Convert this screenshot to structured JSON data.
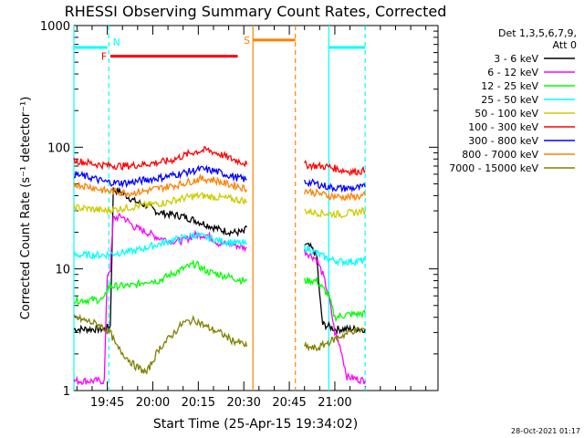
{
  "chart_data": {
    "type": "line",
    "title": "RHESSI Observing Summary Count Rates, Corrected",
    "xlabel": "Start Time (25-Apr-15 19:34:02)",
    "ylabel": "Corrected Count Rate (s⁻¹ detector⁻¹)",
    "yscale": "log",
    "ylim": [
      1,
      1000
    ],
    "xlim_min": [
      0,
      120
    ],
    "xticks": [
      {
        "t": 11,
        "label": "19:45"
      },
      {
        "t": 26,
        "label": "20:00"
      },
      {
        "t": 41,
        "label": "20:15"
      },
      {
        "t": 56,
        "label": "20:30"
      },
      {
        "t": 71,
        "label": "20:45"
      },
      {
        "t": 86,
        "label": "21:00"
      }
    ],
    "yticks": [
      {
        "v": 1,
        "label": "1"
      },
      {
        "v": 10,
        "label": "10"
      },
      {
        "v": 100,
        "label": "100"
      },
      {
        "v": 1000,
        "label": "1000"
      }
    ],
    "legend_header": [
      "Det 1,3,5,6,7,9,",
      "Att 0"
    ],
    "legend": [
      {
        "name": "3 - 6 keV",
        "color": "#000000"
      },
      {
        "name": "6 - 12 keV",
        "color": "#ff00ff"
      },
      {
        "name": "12 - 25 keV",
        "color": "#00ff00"
      },
      {
        "name": "25 - 50 keV",
        "color": "#00ffff"
      },
      {
        "name": "50 - 100 keV",
        "color": "#cccc00"
      },
      {
        "name": "100 - 300 keV",
        "color": "#ff0000"
      },
      {
        "name": "300 - 800 keV",
        "color": "#0000ff"
      },
      {
        "name": "800 - 7000 keV",
        "color": "#ff8000"
      },
      {
        "name": "7000 - 15000 keV",
        "color": "#808000"
      }
    ],
    "series": [
      {
        "name": "3 - 6 keV",
        "color": "#000000",
        "segments": [
          [
            [
              0,
              3.2
            ],
            [
              10,
              3.2
            ],
            [
              11,
              3.3
            ],
            [
              12,
              3.4
            ],
            [
              13,
              45
            ],
            [
              16,
              42
            ],
            [
              20,
              36
            ],
            [
              24,
              33
            ],
            [
              28,
              29
            ],
            [
              32,
              28
            ],
            [
              36,
              27
            ],
            [
              40,
              25
            ],
            [
              44,
              23
            ],
            [
              48,
              21
            ],
            [
              52,
              20
            ],
            [
              56,
              20
            ],
            [
              57,
              22
            ]
          ],
          [
            [
              76,
              16
            ],
            [
              78,
              15
            ],
            [
              80,
              13
            ],
            [
              81,
              6
            ],
            [
              82,
              3.5
            ],
            [
              85,
              3.3
            ],
            [
              86,
              3.2
            ],
            [
              96,
              3.2
            ]
          ]
        ]
      },
      {
        "name": "6 - 12 keV",
        "color": "#ff00ff",
        "segments": [
          [
            [
              0,
              1.2
            ],
            [
              10,
              1.2
            ],
            [
              11,
              9
            ],
            [
              12,
              10
            ],
            [
              13,
              26
            ],
            [
              16,
              27
            ],
            [
              20,
              22
            ],
            [
              24,
              20
            ],
            [
              28,
              18
            ],
            [
              32,
              17
            ],
            [
              36,
              17
            ],
            [
              40,
              19
            ],
            [
              44,
              19
            ],
            [
              48,
              16
            ],
            [
              52,
              16
            ],
            [
              56,
              15
            ],
            [
              57,
              15
            ]
          ],
          [
            [
              76,
              14
            ],
            [
              80,
              12
            ],
            [
              82,
              9
            ],
            [
              84,
              6
            ],
            [
              86,
              3
            ],
            [
              88,
              2.2
            ],
            [
              90,
              1.3
            ],
            [
              96,
              1.2
            ]
          ]
        ]
      },
      {
        "name": "12 - 25 keV",
        "color": "#00ff00",
        "segments": [
          [
            [
              0,
              5.5
            ],
            [
              10,
              5.6
            ],
            [
              11,
              7
            ],
            [
              12,
              7.2
            ],
            [
              14,
              7.2
            ],
            [
              20,
              7.3
            ],
            [
              24,
              8
            ],
            [
              28,
              8
            ],
            [
              32,
              9
            ],
            [
              36,
              10
            ],
            [
              40,
              11
            ],
            [
              44,
              9.5
            ],
            [
              48,
              9
            ],
            [
              52,
              8.5
            ],
            [
              56,
              8
            ],
            [
              57,
              8
            ]
          ],
          [
            [
              76,
              8
            ],
            [
              80,
              8
            ],
            [
              84,
              6
            ],
            [
              86,
              4
            ],
            [
              90,
              4.2
            ],
            [
              96,
              4.3
            ]
          ]
        ]
      },
      {
        "name": "25 - 50 keV",
        "color": "#00ffff",
        "segments": [
          [
            [
              0,
              13
            ],
            [
              6,
              13
            ],
            [
              10,
              13
            ],
            [
              14,
              13.5
            ],
            [
              20,
              14
            ],
            [
              24,
              15
            ],
            [
              28,
              16
            ],
            [
              32,
              17
            ],
            [
              36,
              18
            ],
            [
              40,
              19
            ],
            [
              44,
              18
            ],
            [
              48,
              17
            ],
            [
              52,
              16.5
            ],
            [
              56,
              16
            ],
            [
              57,
              16
            ]
          ],
          [
            [
              76,
              15
            ],
            [
              80,
              13.5
            ],
            [
              84,
              12
            ],
            [
              88,
              11.5
            ],
            [
              92,
              11.5
            ],
            [
              96,
              11.7
            ]
          ]
        ]
      },
      {
        "name": "50 - 100 keV",
        "color": "#cccc00",
        "segments": [
          [
            [
              0,
              32
            ],
            [
              6,
              31
            ],
            [
              10,
              30
            ],
            [
              14,
              31
            ],
            [
              18,
              32
            ],
            [
              22,
              33
            ],
            [
              26,
              34
            ],
            [
              30,
              35
            ],
            [
              34,
              37
            ],
            [
              38,
              39
            ],
            [
              42,
              40
            ],
            [
              46,
              39
            ],
            [
              50,
              38
            ],
            [
              54,
              37
            ],
            [
              57,
              36
            ]
          ],
          [
            [
              76,
              30
            ],
            [
              80,
              29
            ],
            [
              84,
              28.5
            ],
            [
              88,
              28
            ],
            [
              92,
              29
            ],
            [
              96,
              30
            ]
          ]
        ]
      },
      {
        "name": "100 - 300 keV",
        "color": "#ff0000",
        "segments": [
          [
            [
              0,
              78
            ],
            [
              4,
              75
            ],
            [
              8,
              72
            ],
            [
              12,
              71
            ],
            [
              16,
              70
            ],
            [
              20,
              71
            ],
            [
              24,
              73
            ],
            [
              28,
              75
            ],
            [
              32,
              78
            ],
            [
              36,
              85
            ],
            [
              40,
              92
            ],
            [
              44,
              95
            ],
            [
              48,
              88
            ],
            [
              52,
              80
            ],
            [
              56,
              75
            ],
            [
              57,
              72
            ]
          ],
          [
            [
              76,
              72
            ],
            [
              80,
              70
            ],
            [
              84,
              69
            ],
            [
              88,
              65
            ],
            [
              92,
              63
            ],
            [
              96,
              64
            ]
          ]
        ]
      },
      {
        "name": "300 - 800 keV",
        "color": "#0000ff",
        "segments": [
          [
            [
              0,
              60
            ],
            [
              6,
              56
            ],
            [
              10,
              52
            ],
            [
              14,
              51
            ],
            [
              18,
              51
            ],
            [
              22,
              53
            ],
            [
              26,
              55
            ],
            [
              30,
              57
            ],
            [
              34,
              60
            ],
            [
              38,
              63
            ],
            [
              42,
              66
            ],
            [
              46,
              64
            ],
            [
              50,
              60
            ],
            [
              54,
              56
            ],
            [
              57,
              54
            ]
          ],
          [
            [
              76,
              52
            ],
            [
              80,
              50
            ],
            [
              84,
              47
            ],
            [
              88,
              46
            ],
            [
              92,
              46
            ],
            [
              96,
              47
            ]
          ]
        ]
      },
      {
        "name": "800 - 7000 keV",
        "color": "#ff8000",
        "segments": [
          [
            [
              0,
              50
            ],
            [
              6,
              47
            ],
            [
              10,
              44
            ],
            [
              14,
              43
            ],
            [
              18,
              42
            ],
            [
              22,
              43
            ],
            [
              26,
              45
            ],
            [
              30,
              47
            ],
            [
              34,
              49
            ],
            [
              38,
              52
            ],
            [
              42,
              55
            ],
            [
              46,
              54
            ],
            [
              50,
              50
            ],
            [
              54,
              48
            ],
            [
              57,
              45
            ]
          ],
          [
            [
              76,
              44
            ],
            [
              80,
              42
            ],
            [
              84,
              40
            ],
            [
              88,
              39
            ],
            [
              92,
              39
            ],
            [
              96,
              40
            ]
          ]
        ]
      },
      {
        "name": "7000 - 15000 keV",
        "color": "#808000",
        "segments": [
          [
            [
              0,
              4
            ],
            [
              8,
              3.5
            ],
            [
              12,
              3
            ],
            [
              14,
              2.3
            ],
            [
              20,
              1.6
            ],
            [
              24,
              1.4
            ],
            [
              28,
              2.2
            ],
            [
              32,
              2.8
            ],
            [
              36,
              3.6
            ],
            [
              40,
              3.8
            ],
            [
              44,
              3.3
            ],
            [
              48,
              3
            ],
            [
              52,
              2.6
            ],
            [
              56,
              2.4
            ],
            [
              57,
              2.3
            ]
          ],
          [
            [
              76,
              2.3
            ],
            [
              80,
              2.2
            ],
            [
              84,
              2.5
            ],
            [
              88,
              2.8
            ],
            [
              92,
              3.1
            ],
            [
              96,
              3.2
            ]
          ]
        ]
      }
    ],
    "flag_bars": [
      {
        "label": "N",
        "color": "#00ffff",
        "spans": [
          [
            0,
            11
          ],
          [
            84,
            96
          ]
        ],
        "level": 660
      },
      {
        "label": "F",
        "color": "#ff0000",
        "spans": [
          [
            12,
            54
          ]
        ],
        "level": 560
      },
      {
        "label": "S",
        "color": "#ff8000",
        "spans": [
          [
            59,
            73
          ]
        ],
        "level": 760
      }
    ],
    "vlines": [
      {
        "t": 0,
        "color": "#00ffff",
        "style": "solid"
      },
      {
        "t": 11.5,
        "color": "#00ffff",
        "style": "dashed"
      },
      {
        "t": 59,
        "color": "#ff8000",
        "style": "solid"
      },
      {
        "t": 73,
        "color": "#ff8000",
        "style": "dashed"
      },
      {
        "t": 84,
        "color": "#00ffff",
        "style": "solid"
      },
      {
        "t": 96,
        "color": "#00ffff",
        "style": "dashed"
      }
    ]
  },
  "footer_timestamp": "28-Oct-2021 01:17"
}
